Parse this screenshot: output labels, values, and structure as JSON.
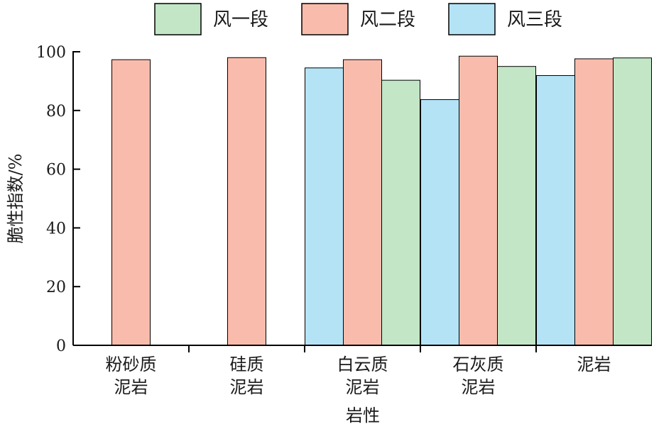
{
  "chart_data": {
    "type": "bar",
    "xlabel": "岩性",
    "ylabel": "脆性指数/%",
    "ylim": [
      0,
      100
    ],
    "yticks": [
      "0",
      "20",
      "40",
      "60",
      "80",
      "100"
    ],
    "categories": [
      [
        "粉砂质",
        "泥岩"
      ],
      [
        "硅质",
        "泥岩"
      ],
      [
        "白云质",
        "泥岩"
      ],
      [
        "石灰质",
        "泥岩"
      ],
      [
        "泥岩"
      ]
    ],
    "legend_placement": "top",
    "series": [
      {
        "name": "风一段",
        "color": "#c2e6c6",
        "values": [
          null,
          null,
          90.3,
          95.0,
          97.9
        ]
      },
      {
        "name": "风二段",
        "color": "#f9bcac",
        "values": [
          97.3,
          98.0,
          97.3,
          98.5,
          97.6
        ]
      },
      {
        "name": "风三段",
        "color": "#b5e3f6",
        "values": [
          null,
          null,
          94.5,
          83.7,
          91.9
        ]
      }
    ],
    "bar_order": [
      "风三段",
      "风二段",
      "风一段"
    ]
  }
}
